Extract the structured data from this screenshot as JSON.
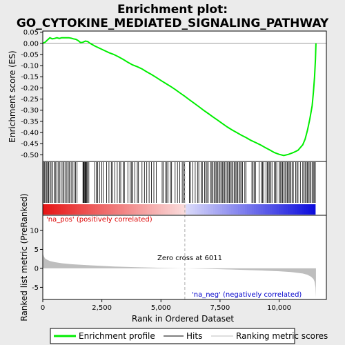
{
  "chart_data": {
    "type": "line",
    "title_lines": [
      "Enrichment plot:",
      "GO_CYTOKINE_MEDIATED_SIGNALING_PATHWAY"
    ],
    "top_panel": {
      "ylabel": "Enrichment score (ES)",
      "ylim": [
        -0.53,
        0.055
      ],
      "yticks": [
        0.05,
        0.0,
        -0.05,
        -0.1,
        -0.15,
        -0.2,
        -0.25,
        -0.3,
        -0.35,
        -0.4,
        -0.45,
        -0.5
      ],
      "ytick_labels": [
        "0.05",
        "0.00",
        "-0.05",
        "-0.10",
        "-0.15",
        "-0.20",
        "-0.25",
        "-0.30",
        "-0.35",
        "-0.40",
        "-0.45",
        "-0.50"
      ],
      "series": [
        {
          "name": "Enrichment profile",
          "color": "#00ee00",
          "x": [
            0,
            100,
            200,
            300,
            400,
            500,
            600,
            700,
            800,
            900,
            1000,
            1100,
            1200,
            1300,
            1400,
            1500,
            1600,
            1700,
            1800,
            1900,
            2000,
            2200,
            2400,
            2600,
            2800,
            3000,
            3200,
            3400,
            3600,
            3800,
            4000,
            4200,
            4400,
            4600,
            4800,
            5000,
            5200,
            5400,
            5600,
            5800,
            6000,
            6200,
            6400,
            6600,
            6800,
            7000,
            7200,
            7400,
            7600,
            7800,
            8000,
            8200,
            8400,
            8600,
            8800,
            9000,
            9200,
            9400,
            9600,
            9800,
            10000,
            10200,
            10400,
            10600,
            10800,
            11000,
            11100,
            11200,
            11300,
            11400,
            11450,
            11500,
            11540,
            11560
          ],
          "y": [
            0.0,
            0.005,
            0.015,
            0.025,
            0.02,
            0.022,
            0.025,
            0.022,
            0.025,
            0.025,
            0.025,
            0.025,
            0.023,
            0.02,
            0.018,
            0.012,
            0.003,
            0.005,
            0.01,
            0.008,
            0.0,
            -0.012,
            -0.022,
            -0.032,
            -0.042,
            -0.05,
            -0.06,
            -0.072,
            -0.085,
            -0.097,
            -0.105,
            -0.115,
            -0.128,
            -0.14,
            -0.153,
            -0.167,
            -0.18,
            -0.193,
            -0.207,
            -0.222,
            -0.237,
            -0.253,
            -0.268,
            -0.284,
            -0.3,
            -0.315,
            -0.33,
            -0.345,
            -0.36,
            -0.375,
            -0.388,
            -0.4,
            -0.412,
            -0.423,
            -0.435,
            -0.445,
            -0.455,
            -0.467,
            -0.478,
            -0.49,
            -0.498,
            -0.503,
            -0.498,
            -0.49,
            -0.48,
            -0.455,
            -0.43,
            -0.39,
            -0.34,
            -0.28,
            -0.22,
            -0.15,
            -0.07,
            0.0
          ]
        }
      ]
    },
    "middle_panel": {
      "hits_label": "Hits",
      "hit_positions": [
        30,
        80,
        130,
        170,
        210,
        250,
        300,
        350,
        420,
        480,
        530,
        600,
        650,
        720,
        780,
        850,
        900,
        960,
        1020,
        1080,
        1130,
        1200,
        1260,
        1320,
        1390,
        1450,
        1700,
        1720,
        1750,
        1780,
        1800,
        1830,
        1860,
        1890,
        1950,
        2200,
        2260,
        2320,
        2400,
        2500,
        2560,
        2700,
        2800,
        2900,
        2950,
        3050,
        3150,
        3250,
        3300,
        3400,
        3450,
        3600,
        3700,
        3760,
        3800,
        3900,
        4000,
        4050,
        4200,
        4300,
        4400,
        4500,
        4600,
        4700,
        4800,
        5050,
        5100,
        5200,
        5250,
        5300,
        5400,
        5450,
        5600,
        5700,
        5800,
        5900,
        5950,
        6000,
        6200,
        6250,
        6350,
        6450,
        6550,
        6600,
        6700,
        6750,
        6850,
        6900,
        6950,
        7000,
        7100,
        7150,
        7200,
        7250,
        7300,
        7350,
        7400,
        7450,
        7500,
        7550,
        7600,
        7650,
        7700,
        7750,
        7800,
        7850,
        7900,
        7950,
        8000,
        8050,
        8100,
        8150,
        8200,
        8250,
        8300,
        8350,
        8400,
        8450,
        8550,
        8600,
        8850,
        8900,
        8950,
        9000,
        9150,
        9250,
        9300,
        9350,
        9450,
        9500,
        9550,
        9600,
        9650,
        9700,
        9800,
        9850,
        9900,
        10000,
        10050,
        10100,
        10150,
        10200,
        10250,
        10300,
        10350,
        10400,
        10450,
        10500,
        10550,
        10600,
        10700,
        10750,
        10800,
        10900,
        11000,
        11050,
        11100,
        11150,
        11200,
        11250,
        11300,
        11350,
        11400,
        11450,
        11500,
        11530
      ]
    },
    "bottom_panel": {
      "ylabel": "Ranked list metric (PreRanked)",
      "ylim": [
        -8.2,
        14
      ],
      "yticks": [
        10,
        5,
        0,
        -5
      ],
      "ytick_labels": [
        "10",
        "5",
        "0",
        "-5"
      ],
      "series": [
        {
          "name": "Ranking metric scores",
          "color": "#bebebe",
          "x": [
            0,
            20,
            50,
            100,
            200,
            300,
            500,
            800,
            1200,
            2000,
            3000,
            4000,
            5000,
            6011,
            7000,
            8000,
            9000,
            10000,
            10500,
            11000,
            11200,
            11350,
            11450,
            11500,
            11540,
            11560
          ],
          "y": [
            4.5,
            3.6,
            3.1,
            2.6,
            2.2,
            1.95,
            1.65,
            1.35,
            1.1,
            0.8,
            0.5,
            0.3,
            0.15,
            0.0,
            -0.12,
            -0.3,
            -0.5,
            -0.75,
            -0.95,
            -1.35,
            -1.7,
            -2.2,
            -2.8,
            -3.5,
            -5.0,
            -7.7
          ]
        }
      ],
      "zero_cross_label": "Zero cross at 6011",
      "zero_cross_x": 6011,
      "pos_label": "'na_pos' (positively correlated)",
      "neg_label": "'na_neg' (negatively correlated)",
      "pos_color": "#dd0000",
      "neg_color": "#0000cc"
    },
    "xlabel": "Rank in Ordered Dataset",
    "xlim": [
      0,
      12000
    ],
    "xticks": [
      0,
      2500,
      5000,
      7500,
      10000
    ],
    "xtick_labels": [
      "0",
      "2,500",
      "5,000",
      "7,500",
      "10,000"
    ],
    "legend": [
      {
        "label": "Enrichment profile",
        "color": "#00ee00"
      },
      {
        "label": "Hits",
        "color": "#000000"
      },
      {
        "label": "Ranking metric scores",
        "color": "#bebebe"
      }
    ],
    "legend_placement": "bottom"
  }
}
